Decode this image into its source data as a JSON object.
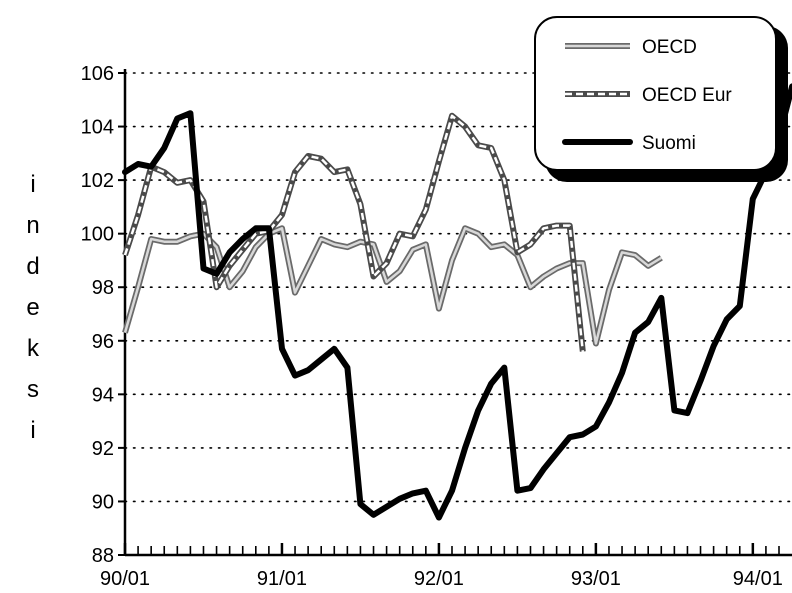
{
  "chart_data": {
    "type": "line",
    "title": "",
    "xlabel": "",
    "ylabel": "indeksi",
    "ylim": [
      88,
      106
    ],
    "yticks": [
      88,
      90,
      92,
      94,
      96,
      98,
      100,
      102,
      104,
      106
    ],
    "xticks": [
      "90/01",
      "91/01",
      "92/01",
      "93/01",
      "94/01"
    ],
    "x_months_start": "1990-01",
    "grid": "horizontal-dotted",
    "legend_position": "top-right",
    "series": [
      {
        "name": "OECD",
        "style": "light-double",
        "values": [
          96.3,
          98.0,
          99.8,
          99.7,
          99.7,
          99.9,
          100.0,
          99.5,
          98.0,
          98.6,
          99.5,
          100.0,
          100.2,
          97.8,
          98.8,
          99.8,
          99.6,
          99.5,
          99.7,
          99.6,
          98.2,
          98.6,
          99.4,
          99.6,
          97.2,
          99.0,
          100.2,
          100.0,
          99.5,
          99.6,
          99.2,
          98.0,
          98.4,
          98.7,
          98.9,
          98.9,
          95.9,
          97.9,
          99.3,
          99.2,
          98.8,
          99.1
        ]
      },
      {
        "name": "OECD Eur",
        "style": "dashed-double",
        "values": [
          99.2,
          100.7,
          102.5,
          102.3,
          101.9,
          102.0,
          101.2,
          98.0,
          98.8,
          99.4,
          100.0,
          100.1,
          100.7,
          102.3,
          102.9,
          102.8,
          102.3,
          102.4,
          101.1,
          98.4,
          98.9,
          100.0,
          99.9,
          100.9,
          102.7,
          104.4,
          104.0,
          103.3,
          103.2,
          102.0,
          99.3,
          99.6,
          100.2,
          100.3,
          100.3,
          95.6
        ]
      },
      {
        "name": "Suomi",
        "style": "thick-black",
        "values": [
          102.3,
          102.6,
          102.5,
          103.2,
          104.3,
          104.5,
          98.7,
          98.5,
          99.3,
          99.8,
          100.2,
          100.2,
          95.7,
          94.7,
          94.9,
          95.3,
          95.7,
          95.0,
          89.9,
          89.5,
          89.8,
          90.1,
          90.3,
          90.4,
          89.4,
          90.4,
          92.0,
          93.4,
          94.4,
          95.0,
          90.4,
          90.5,
          91.2,
          91.8,
          92.4,
          92.5,
          92.8,
          93.7,
          94.8,
          96.3,
          96.7,
          97.6,
          93.4,
          93.3,
          94.5,
          95.8,
          96.8,
          97.3,
          101.3,
          102.3,
          103.6,
          105.5
        ]
      }
    ]
  }
}
